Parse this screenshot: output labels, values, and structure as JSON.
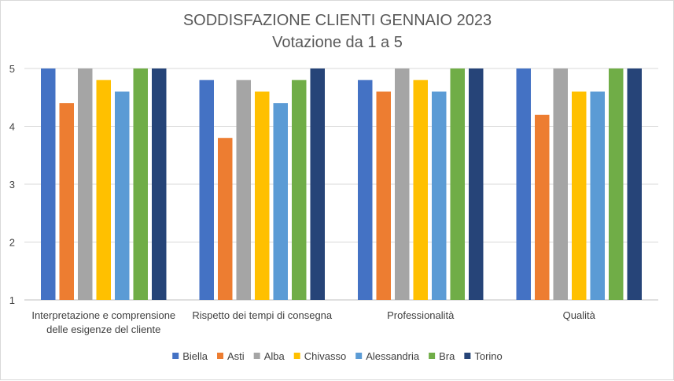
{
  "chart_data": {
    "type": "bar",
    "title": "SODDISFAZIONE CLIENTI GENNAIO 2023",
    "subtitle": "Votazione da 1 a 5",
    "xlabel": "",
    "ylabel": "",
    "ylim": [
      1,
      5
    ],
    "yticks": [
      1,
      2,
      3,
      4,
      5
    ],
    "grid": true,
    "legend_position": "bottom",
    "categories": [
      [
        "Interpretazione e comprensione",
        "delle esigenze del cliente"
      ],
      [
        "Rispetto dei tempi di consegna"
      ],
      [
        "Professionalità"
      ],
      [
        "Qualità"
      ]
    ],
    "series": [
      {
        "name": "Biella",
        "color": "#4472C4",
        "values": [
          5,
          4.8,
          4.8,
          5
        ]
      },
      {
        "name": "Asti",
        "color": "#ED7D31",
        "values": [
          4.4,
          3.8,
          4.6,
          4.2
        ]
      },
      {
        "name": "Alba",
        "color": "#A5A5A5",
        "values": [
          5,
          4.8,
          5,
          5
        ]
      },
      {
        "name": "Chivasso",
        "color": "#FFC000",
        "values": [
          4.8,
          4.6,
          4.8,
          4.6
        ]
      },
      {
        "name": "Alessandria",
        "color": "#5B9BD5",
        "values": [
          4.6,
          4.4,
          4.6,
          4.6
        ]
      },
      {
        "name": "Bra",
        "color": "#70AD47",
        "values": [
          5,
          4.8,
          5,
          5
        ]
      },
      {
        "name": "Torino",
        "color": "#264478",
        "values": [
          5,
          5,
          5,
          5
        ]
      }
    ]
  }
}
